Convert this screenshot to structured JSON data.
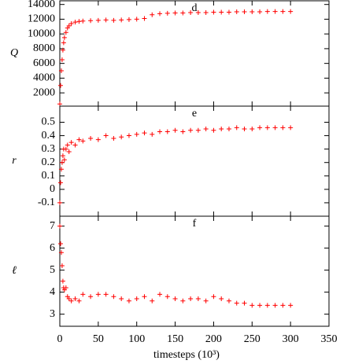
{
  "chart_data": [
    {
      "type": "scatter",
      "ylabel": "Q",
      "annotation": "d",
      "color": "#ff0000",
      "x": [
        0,
        1,
        2,
        3,
        4,
        5,
        6,
        8,
        10,
        12,
        15,
        20,
        25,
        30,
        40,
        50,
        60,
        70,
        80,
        90,
        100,
        110,
        120,
        130,
        140,
        150,
        160,
        170,
        180,
        190,
        200,
        210,
        220,
        230,
        240,
        250,
        260,
        270,
        280,
        290,
        300
      ],
      "values": [
        500,
        3000,
        5000,
        6500,
        7800,
        8800,
        9500,
        10200,
        10800,
        11100,
        11400,
        11600,
        11700,
        11750,
        11800,
        11850,
        11900,
        11850,
        11900,
        11950,
        12000,
        12100,
        12600,
        12750,
        12800,
        12850,
        12850,
        12900,
        12900,
        12900,
        12950,
        12950,
        12950,
        13000,
        13000,
        13000,
        13000,
        13050,
        13050,
        13050,
        13050
      ],
      "xlim": [
        0,
        350
      ],
      "ylim": [
        200,
        14500
      ],
      "yticks": [
        2000,
        4000,
        6000,
        8000,
        10000,
        12000,
        14000
      ]
    },
    {
      "type": "scatter",
      "ylabel": "r",
      "annotation": "e",
      "color": "#ff0000",
      "x": [
        0,
        1,
        2,
        3,
        4,
        5,
        6,
        8,
        10,
        12,
        15,
        20,
        25,
        30,
        40,
        50,
        60,
        70,
        80,
        90,
        100,
        110,
        120,
        130,
        140,
        150,
        160,
        170,
        180,
        190,
        200,
        210,
        220,
        230,
        240,
        250,
        260,
        270,
        280,
        290,
        300
      ],
      "values": [
        -0.1,
        0.05,
        0.15,
        0.2,
        0.25,
        0.3,
        0.22,
        0.3,
        0.33,
        0.28,
        0.35,
        0.33,
        0.37,
        0.36,
        0.38,
        0.37,
        0.4,
        0.38,
        0.39,
        0.4,
        0.41,
        0.42,
        0.41,
        0.43,
        0.43,
        0.44,
        0.43,
        0.44,
        0.44,
        0.45,
        0.44,
        0.45,
        0.45,
        0.46,
        0.45,
        0.45,
        0.46,
        0.46,
        0.46,
        0.46,
        0.46
      ],
      "xlim": [
        0,
        350
      ],
      "ylim": [
        -0.2,
        0.62
      ],
      "yticks": [
        -0.1,
        0,
        0.1,
        0.2,
        0.3,
        0.4,
        0.5
      ]
    },
    {
      "type": "scatter",
      "ylabel": "ℓ",
      "annotation": "f",
      "color": "#ff0000",
      "xlabel": "timesteps (10³)",
      "x": [
        0,
        1,
        2,
        3,
        4,
        5,
        6,
        8,
        10,
        12,
        15,
        20,
        25,
        30,
        40,
        50,
        60,
        70,
        80,
        90,
        100,
        110,
        120,
        130,
        140,
        150,
        160,
        170,
        180,
        190,
        200,
        210,
        220,
        230,
        240,
        250,
        260,
        270,
        280,
        290,
        300
      ],
      "values": [
        7.0,
        6.2,
        5.8,
        5.2,
        4.5,
        4.2,
        4.1,
        4.2,
        3.8,
        3.7,
        3.6,
        3.7,
        3.6,
        3.9,
        3.8,
        3.9,
        3.9,
        3.8,
        3.7,
        3.6,
        3.7,
        3.8,
        3.6,
        3.9,
        3.8,
        3.7,
        3.6,
        3.7,
        3.7,
        3.6,
        3.8,
        3.7,
        3.6,
        3.5,
        3.5,
        3.4,
        3.4,
        3.4,
        3.4,
        3.4,
        3.4
      ],
      "xlim": [
        0,
        350
      ],
      "ylim": [
        2.45,
        7.45
      ],
      "yticks": [
        3,
        4,
        5,
        6,
        7
      ],
      "xticks": [
        0,
        50,
        100,
        150,
        200,
        250,
        300,
        350
      ]
    }
  ]
}
